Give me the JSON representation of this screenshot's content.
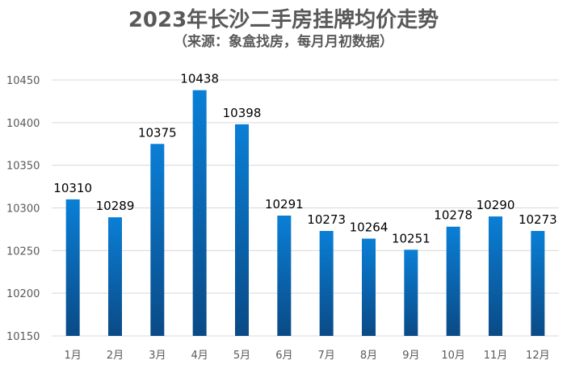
{
  "chart_data": {
    "type": "bar",
    "title": "2023年长沙二手房挂牌均价走势",
    "subtitle": "（来源：象盒找房，每月月初数据）",
    "xlabel": "",
    "ylabel": "",
    "categories": [
      "1月",
      "2月",
      "3月",
      "4月",
      "5月",
      "6月",
      "7月",
      "8月",
      "9月",
      "10月",
      "11月",
      "12月"
    ],
    "values": [
      10310,
      10289,
      10375,
      10438,
      10398,
      10291,
      10273,
      10264,
      10251,
      10278,
      10290,
      10273
    ],
    "ylim": [
      10150,
      10450
    ],
    "yticks": [
      10150,
      10200,
      10250,
      10300,
      10350,
      10400,
      10450
    ],
    "grid": true,
    "colors": {
      "bar_top": "#0a7fd6",
      "bar_bottom": "#0a4a86",
      "grid": "#d9d9d9"
    }
  }
}
